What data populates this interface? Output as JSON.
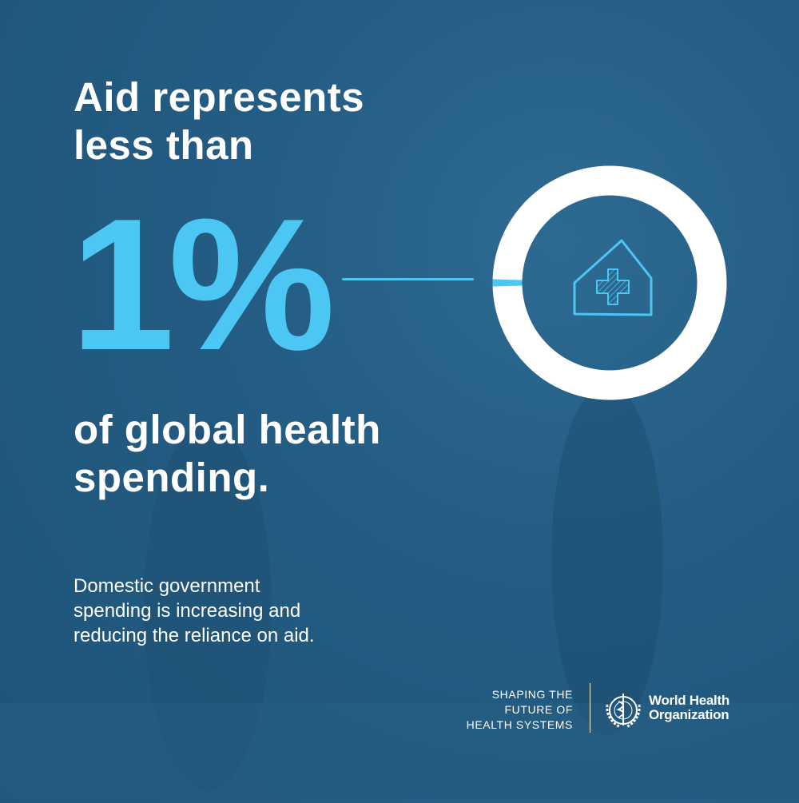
{
  "headline": [
    "Aid represents",
    "less than"
  ],
  "stat": "1%",
  "subheadline": [
    "of global health",
    "spending."
  ],
  "body": [
    "Domestic government",
    "spending is increasing and",
    "reducing the reliance on aid."
  ],
  "ring": {
    "share_percent": 1,
    "icon": "hospital-house-cross-icon"
  },
  "footer": {
    "tagline": [
      "SHAPING THE",
      "FUTURE OF",
      "HEALTH SYSTEMS"
    ],
    "org_name": [
      "World Health",
      "Organization"
    ],
    "logo": "who-emblem"
  },
  "colors": {
    "accent": "#4cc6f2",
    "background": "#235b82",
    "ring": "#ffffff",
    "text": "#ffffff"
  }
}
